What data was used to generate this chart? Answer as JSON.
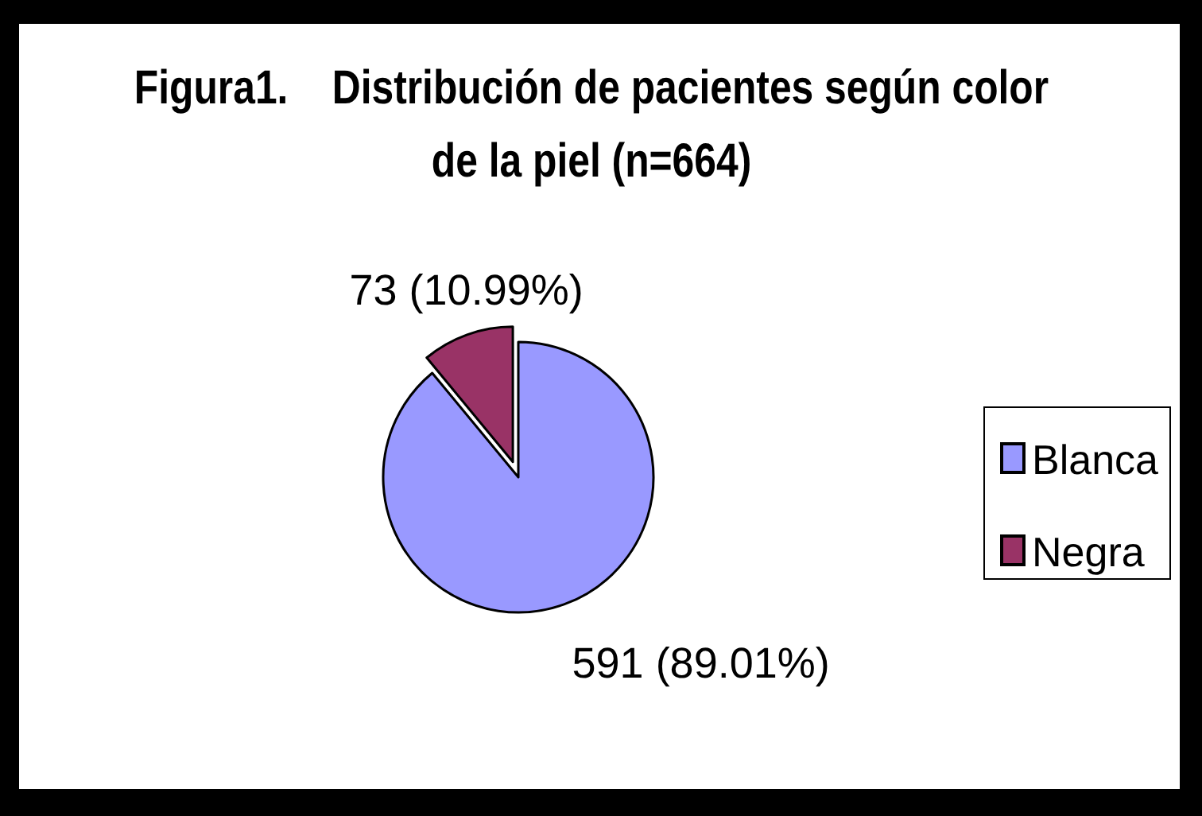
{
  "chart_data": {
    "type": "pie",
    "title": "Figura1.    Distribución de pacientes según color de la piel (n=664)",
    "categories": [
      "Blanca",
      "Negra"
    ],
    "values": [
      591,
      73
    ],
    "colors": [
      "#9999ff",
      "#993366"
    ],
    "value_labels": [
      "591 (89.01%)",
      "73 (10.99%)"
    ],
    "legend": "right"
  }
}
